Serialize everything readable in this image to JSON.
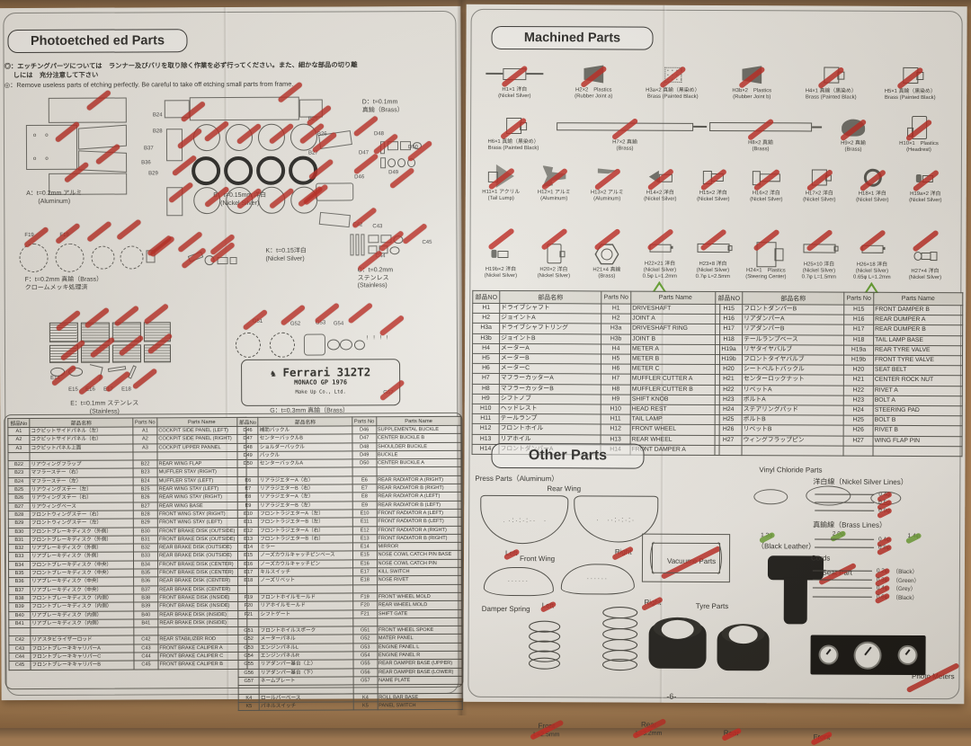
{
  "left_page": {
    "header": "Photoetched ed Parts",
    "notes": {
      "jp1": "◎：エッチングパーツについては　ランナー及びバリを取り除く作業を必ず行ってください。また、細かな部品の切り離",
      "jp2": "しには　充分注意して下さい",
      "en": "◎：Remove useless parts of etching perfectly. Be careful to take off etching small parts from frame."
    },
    "materials": {
      "a1": "A：t=0.2mm アルミ",
      "a2": "(Aluminum)",
      "b1": "B：t=0.15mm 洋白",
      "b2": "(Nickel Silver)",
      "d1": "D：t=0.1mm",
      "d2": "真鍮（Brass）",
      "f1": "F：t=0.2mm 真鍮（Brass）",
      "f2": "クロームメッキ処理済",
      "k1": "K：t=0.15洋白",
      "k2": "(Nickel Silver)",
      "c1": "C：t=0.2mm",
      "c2": "ステンレス",
      "c3": "(Stainless)",
      "e1": "E：t=0.1mm ステンレス",
      "e2": "(Stainless)",
      "g1": "G：t=0.3mm 真鍮（Brass）"
    },
    "plate": {
      "brand": "Ferrari 312T2",
      "race": "MONACO GP 1976",
      "maker": "Make Up Co., Ltd."
    },
    "frame_labels": {
      "d": [
        "D46",
        "D47",
        "D48",
        "D49",
        "D50"
      ],
      "f": [
        "F19",
        "F19"
      ],
      "c": [
        "C42",
        "C43",
        "C44",
        "C45"
      ],
      "b": [
        "B24",
        "B28",
        "B37",
        "B36",
        "B29",
        "B25",
        "B26",
        "B27"
      ],
      "g": [
        "G51",
        "G52",
        "G53",
        "G54",
        "G57"
      ],
      "e": [
        "E14",
        "E15",
        "E16",
        "E17",
        "E18"
      ]
    },
    "table": {
      "headers": [
        "部品No",
        "部品名称",
        "Parts No",
        "Parts Name"
      ],
      "group1": [
        {
          "n": "A1",
          "j": "コクピットサイドパネル（左）",
          "e": "COCKPIT SIDE PANEL (LEFT)"
        },
        {
          "n": "A2",
          "j": "コクピットサイドパネル（右）",
          "e": "COCKPIT SIDE PANEL (RIGHT)"
        },
        {
          "n": "A3",
          "j": "コクピットパネル上面",
          "e": "COCKPIT UPPER PANNEL"
        },
        {
          "n": "",
          "j": "",
          "e": ""
        },
        {
          "n": "B22",
          "j": "リアウィングフラップ",
          "e": "REAR WING FLAP"
        },
        {
          "n": "B23",
          "j": "マフラーステー（右）",
          "e": "MUFFLER STAY (RIGHT)"
        },
        {
          "n": "B24",
          "j": "マフラーステー（左）",
          "e": "MUFFLER STAY (LEFT)"
        },
        {
          "n": "B25",
          "j": "リアウィングステー（左）",
          "e": "REAR WING STAY (LEFT)"
        },
        {
          "n": "B26",
          "j": "リアウィングステー（右）",
          "e": "REAR WING STAY (RIGHT)"
        },
        {
          "n": "B27",
          "j": "リアウィングベース",
          "e": "REAR WING BASE"
        },
        {
          "n": "B28",
          "j": "フロントウィングステー（右）",
          "e": "FRONT WING STAY (RIGHT)"
        },
        {
          "n": "B29",
          "j": "フロントウィングステー（左）",
          "e": "FRONT WING STAY (LEFT)"
        },
        {
          "n": "B30",
          "j": "フロントブレーキディスク（外側）",
          "e": "FRONT BRAKE DISK (OUTSIDE)"
        },
        {
          "n": "B31",
          "j": "フロントブレーキディスク（外側）",
          "e": "FRONT BRAKE DISK (OUTSIDE)"
        },
        {
          "n": "B32",
          "j": "リアブレーキディスク（外側）",
          "e": "REAR BRAKE DISK (OUTSIDE)"
        },
        {
          "n": "B33",
          "j": "リアブレーキディスク（外側）",
          "e": "REAR BRAKE DISK (OUTSIDE)"
        },
        {
          "n": "B34",
          "j": "フロントブレーキディスク（中央）",
          "e": "FRONT BRAKE DISK (CENTER)"
        },
        {
          "n": "B35",
          "j": "フロントブレーキディスク（中央）",
          "e": "FRONT BRAKE DISK (CENTER)"
        },
        {
          "n": "B36",
          "j": "リアブレーキディスク（中央）",
          "e": "REAR BRAKE DISK (CENTER)"
        },
        {
          "n": "B37",
          "j": "リアブレーキディスク（中央）",
          "e": "REAR BRAKE DISK (CENTER)"
        },
        {
          "n": "B38",
          "j": "フロントブレーキディスク（内側）",
          "e": "FRONT BRAKE DISK (INSIDE)"
        },
        {
          "n": "B39",
          "j": "フロントブレーキディスク（内側）",
          "e": "FRONT BRAKE DISK (INSIDE)"
        },
        {
          "n": "B40",
          "j": "リアブレーキディスク（内側）",
          "e": "REAR BRAKE DISK (INSIDE)"
        },
        {
          "n": "B41",
          "j": "リアブレーキディスク（内側）",
          "e": "REAR BRAKE DISK (INSIDE)"
        },
        {
          "n": "",
          "j": "",
          "e": ""
        },
        {
          "n": "C42",
          "j": "リアスタビライザーロッド",
          "e": "REAR STABILIZER ROD"
        },
        {
          "n": "C43",
          "j": "フロントブレーキキャリパーA",
          "e": "FRONT BRAKE CALIPER A"
        },
        {
          "n": "C44",
          "j": "フロントブレーキキャリパーC",
          "e": "FRONT BRAKE CALIPER C"
        },
        {
          "n": "C45",
          "j": "フロントブレーキキャリパーB",
          "e": "FRONT BRAKE CALIPER B"
        }
      ],
      "group2": [
        {
          "n": "D46",
          "j": "補助バックル",
          "e": "SUPPLEMENTAL BUCKLE"
        },
        {
          "n": "D47",
          "j": "センターバックルB",
          "e": "CENTER BUCKLE B"
        },
        {
          "n": "D48",
          "j": "ショルダーバックル",
          "e": "SHOULDER BUCKLE"
        },
        {
          "n": "D49",
          "j": "バックル",
          "e": "BUCKLE"
        },
        {
          "n": "D50",
          "j": "センターバックルA",
          "e": "CENTER BUCKLE A"
        },
        {
          "n": "",
          "j": "",
          "e": ""
        },
        {
          "n": "E6",
          "j": "リアラジエターA（右）",
          "e": "REAR RADIATOR A (RIGHT)"
        },
        {
          "n": "E7",
          "j": "リアラジエターB（右）",
          "e": "REAR RADIATOR B (RIGHT)"
        },
        {
          "n": "E8",
          "j": "リアラジエターA（左）",
          "e": "REAR RADIATOR A (LEFT)"
        },
        {
          "n": "E9",
          "j": "リアラジエターB（左）",
          "e": "REAR RADIATOR B (LEFT)"
        },
        {
          "n": "E10",
          "j": "フロントラジエターA（左）",
          "e": "FRONT RADIATOR A (LEFT)"
        },
        {
          "n": "E11",
          "j": "フロントラジエターB（左）",
          "e": "FRONT RADIATOR B (LEFT)"
        },
        {
          "n": "E12",
          "j": "フロントラジエターA（右）",
          "e": "FRONT RADIATOR A (RIGHT)"
        },
        {
          "n": "E13",
          "j": "フロントラジエターB（右）",
          "e": "FRONT RADIATOR B (RIGHT)"
        },
        {
          "n": "E14",
          "j": "ミラー",
          "e": "MIRROR"
        },
        {
          "n": "E15",
          "j": "ノーズカウルキャッチピンベース",
          "e": "NOSE COWL CATCH PIN BASE"
        },
        {
          "n": "E16",
          "j": "ノーズカウルキャッチピン",
          "e": "NOSE COWL CATCH PIN"
        },
        {
          "n": "E17",
          "j": "キルスイッチ",
          "e": "KILL SWITCH"
        },
        {
          "n": "E18",
          "j": "ノーズリベット",
          "e": "NOSE RIVET"
        },
        {
          "n": "",
          "j": "",
          "e": ""
        },
        {
          "n": "F19",
          "j": "フロントホイルモールド",
          "e": "FRONT WHEEL MOLD"
        },
        {
          "n": "F20",
          "j": "リアホイルモールド",
          "e": "REAR WHEEL MOLD"
        },
        {
          "n": "F21",
          "j": "シフトゲート",
          "e": "SHIFT GATE"
        },
        {
          "n": "",
          "j": "",
          "e": ""
        },
        {
          "n": "G51",
          "j": "フロントホイルスポーク",
          "e": "FRONT WHEEL SPOKE"
        },
        {
          "n": "G52",
          "j": "メーターパネル",
          "e": "MATER PANEL"
        },
        {
          "n": "G53",
          "j": "エンジンパネルL",
          "e": "ENGINE PANEL L"
        },
        {
          "n": "G54",
          "j": "エンジンパネルR",
          "e": "ENGINE PANEL R"
        },
        {
          "n": "G55",
          "j": "リアダンパー基台（上）",
          "e": "REAR DAMPER BASE (UPPER)"
        },
        {
          "n": "G56",
          "j": "リアダンパー基台（下）",
          "e": "REAR DAMPER BASE (LOWER)"
        },
        {
          "n": "G57",
          "j": "ネームプレート",
          "e": "NAME PLATE"
        },
        {
          "n": "",
          "j": "",
          "e": ""
        },
        {
          "n": "K4",
          "j": "ロールバーベース",
          "e": "ROLL BAR BASE"
        },
        {
          "n": "K5",
          "j": "パネルスイッチ",
          "e": "PANEL SWITCH"
        }
      ]
    }
  },
  "right_page": {
    "header": "Machined Parts",
    "rows": [
      [
        {
          "id": "H1×1 洋白",
          "sub": "(Nickel Silver)",
          "cls": "shp-shaft"
        },
        {
          "id": "H2×2　Plastics",
          "sub": "(Rubber Joint a)",
          "cls": "shp-cone"
        },
        {
          "id": "H3a×2 真鍮（黒染め）",
          "sub": "Brass (Painted Black)",
          "cls": "shp-dotbox"
        },
        {
          "id": "H3b×2　Plastics",
          "sub": "(Rubber Joint b)",
          "cls": "shp-cone"
        },
        {
          "id": "H4×1 真鍮（黒染め）",
          "sub": "Brass (Painted Black)",
          "cls": "shp-flange"
        },
        {
          "id": "H5×1 真鍮（黒染め）",
          "sub": "Brass (Painted Black)",
          "cls": "shp-flange"
        }
      ],
      [
        {
          "id": "H6×1 真鍮（黒染め）",
          "sub": "Brass (Painted Black)",
          "cls": "shp-flange"
        },
        {
          "id": "H7×2 真鍮",
          "sub": "(Brass)",
          "cls": "shp-rodlong"
        },
        {
          "id": "H8×2 真鍮",
          "sub": "(Brass)",
          "cls": "shp-rod"
        },
        {
          "id": "H9×2 真鍮",
          "sub": "(Brass)",
          "cls": "shp-dome"
        },
        {
          "id": "H10×1　Plastics",
          "sub": "(Headrest)",
          "cls": "shp-headrest"
        }
      ],
      [
        {
          "id": "H11×1 アクリル",
          "sub": "(Tail Lump)",
          "cls": "shp-tricone"
        },
        {
          "id": "H12×1 アルミ",
          "sub": "(Aluminum)",
          "cls": "shp-anvil"
        },
        {
          "id": "H13×2 アルミ",
          "sub": "(Aluminum)",
          "cls": "shp-wedge"
        },
        {
          "id": "H14×2 洋白",
          "sub": "(Nickel Silver)",
          "cls": "shp-arrowbolt"
        },
        {
          "id": "H15×2 洋白",
          "sub": "(Nickel Silver)",
          "cls": "shp-bolt"
        },
        {
          "id": "H16×2 洋白",
          "sub": "(Nickel Silver)",
          "cls": "shp-boltlong"
        },
        {
          "id": "H17×2 洋白",
          "sub": "(Nickel Silver)",
          "cls": "shp-cap"
        },
        {
          "id": "H18×1 洋白",
          "sub": "(Nickel Silver)",
          "cls": "shp-washer"
        },
        {
          "id": "H19a×2 洋白",
          "sub": "(Nickel Silver)",
          "cls": "shp-rivet"
        }
      ],
      [
        {
          "id": "H19b×2 洋白",
          "sub": "(Nickel Silver)",
          "cls": "shp-rivet"
        },
        {
          "id": "H20×2 洋白",
          "sub": "(Nickel Silver)",
          "cls": "shp-discside"
        },
        {
          "id": "H21×4 真鍮",
          "sub": "(Brass)",
          "cls": "shp-hex"
        },
        {
          "id": "H22×21 洋白",
          "sub": "(Nickel Silver)",
          "dim": "0.5φ L=1.2mm",
          "cls": "shp-pinsm",
          "tri": true
        },
        {
          "id": "H23×8 洋白",
          "sub": "(Nickel Silver)",
          "dim": "0.7φ L=2.5mm",
          "cls": "shp-pin"
        },
        {
          "id": "H24×1　Plastics",
          "sub": "(Steering Center)",
          "cls": "shp-pad"
        },
        {
          "id": "H25×10 洋白",
          "sub": "(Nickel Silver)",
          "dim": "0.7φ L=1.5mm",
          "cls": "shp-pin"
        },
        {
          "id": "H26×18 洋白",
          "sub": "(Nickel Silver)",
          "dim": "0.65φ L=1.2mm",
          "cls": "shp-pinsm",
          "tri": true
        },
        {
          "id": "H27×4 洋白",
          "sub": "(Nickel Silver)",
          "cls": "shp-pinhead"
        }
      ]
    ],
    "table": {
      "headers": [
        "部品NO",
        "部品名称",
        "Parts No",
        "Parts Name"
      ],
      "group1": [
        {
          "n": "H1",
          "j": "ドライブシャフト",
          "e": "DRIVESHAFT"
        },
        {
          "n": "H2",
          "j": "ジョイントA",
          "e": "JOINT A"
        },
        {
          "n": "H3a",
          "j": "ドライブシャフトリング",
          "e": "DRIVESHAFT RING"
        },
        {
          "n": "H3b",
          "j": "ジョイントB",
          "e": "JOINT B"
        },
        {
          "n": "H4",
          "j": "メーターA",
          "e": "METER A"
        },
        {
          "n": "H5",
          "j": "メーターB",
          "e": "METER B"
        },
        {
          "n": "H6",
          "j": "メーターC",
          "e": "METER C"
        },
        {
          "n": "H7",
          "j": "マフラーカッターA",
          "e": "MUFFLER CUTTER A"
        },
        {
          "n": "H8",
          "j": "マフラーカッターB",
          "e": "MUFFLER CUTTER B"
        },
        {
          "n": "H9",
          "j": "シフトノブ",
          "e": "SHIFT KNOB"
        },
        {
          "n": "H10",
          "j": "ヘッドレスト",
          "e": "HEAD REST"
        },
        {
          "n": "H11",
          "j": "テールランプ",
          "e": "TAIL LAMP"
        },
        {
          "n": "H12",
          "j": "フロントホイル",
          "e": "FRONT WHEEL"
        },
        {
          "n": "H13",
          "j": "リアホイル",
          "e": "REAR WHEEL"
        },
        {
          "n": "H14",
          "j": "フロントダンパーA",
          "e": "FRONT DAMPER A"
        }
      ],
      "group2": [
        {
          "n": "H15",
          "j": "フロントダンパーB",
          "e": "FRONT DAMPER B"
        },
        {
          "n": "H16",
          "j": "リアダンパーA",
          "e": "REAR DUMPER A"
        },
        {
          "n": "H17",
          "j": "リアダンパーB",
          "e": "REAR DUMPER B"
        },
        {
          "n": "H18",
          "j": "テールランプベース",
          "e": "TAIL LAMP BASE"
        },
        {
          "n": "H19a",
          "j": "リヤタイヤバルブ",
          "e": "REAR TYRE VALVE"
        },
        {
          "n": "H19b",
          "j": "フロントタイヤバルブ",
          "e": "FRONT TYRE VALVE"
        },
        {
          "n": "H20",
          "j": "シートベルトバックル",
          "e": "SEAT BELT"
        },
        {
          "n": "H21",
          "j": "センターロックナット",
          "e": "CENTER ROCK NUT"
        },
        {
          "n": "H22",
          "j": "リベットA",
          "e": "RIVET A"
        },
        {
          "n": "H23",
          "j": "ボルトA",
          "e": "BOLT A"
        },
        {
          "n": "H24",
          "j": "ステアリングパッド",
          "e": "STEERING PAD"
        },
        {
          "n": "H25",
          "j": "ボルトB",
          "e": "BOLT B"
        },
        {
          "n": "H26",
          "j": "リベットB",
          "e": "RIVET B"
        },
        {
          "n": "H27",
          "j": "ウィングフラップピン",
          "e": "WING FLAP PIN"
        },
        {
          "n": "",
          "j": "",
          "e": ""
        }
      ]
    },
    "other": {
      "header": "Other Parts",
      "press_title": "Press Parts（Aluminum）",
      "rear_wing": "Rear Wing",
      "front_wing": "Front Wing",
      "left1": "Left",
      "right1": "Right",
      "left2": "Left",
      "right2": "Right",
      "vinyl_title": "Vinyl Chloride Parts",
      "vinyl_sizes": [
        "1.2φ",
        "2.0φ",
        "1.4φ"
      ],
      "vacuum_title": "Vacuume Parts",
      "seat_title1": "Seat Part",
      "seat_title2": "（Black Leather）",
      "nickel_title": "洋白線（Nickel Silver Lines）",
      "nickel_sizes": [
        "0.4φ",
        "0.5φ",
        "0.9φ"
      ],
      "brass_title": "真鍮線（Brass Lines）",
      "brass_sizes": [
        "0.4φ",
        "0.8φ"
      ],
      "cords_title": "Cords",
      "cords": [
        {
          "size": "0.2φ",
          "color": "（Black）"
        },
        {
          "size": "0.3φ",
          "color": "（Green）"
        },
        {
          "size": "0.4φ",
          "color": "（Grey）"
        },
        {
          "size": "0.6φ",
          "color": "（Black）"
        }
      ],
      "damper_title": "Damper Spring",
      "spring_front": "Front",
      "spring_front_dim": "L=2.5mm",
      "spring_rear": "Rear",
      "spring_rear_dim": "L=3.2mm",
      "tyre_title": "Tyre Parts",
      "tyre_rear": "Rear",
      "tyre_front": "Front",
      "photo_meters_title": "Photo Meters",
      "footer": "-6-"
    }
  },
  "colors": {
    "check_red": "#ba2921",
    "check_green": "#70a43a",
    "paper": "#eae8e2",
    "wood": "#b28457"
  }
}
